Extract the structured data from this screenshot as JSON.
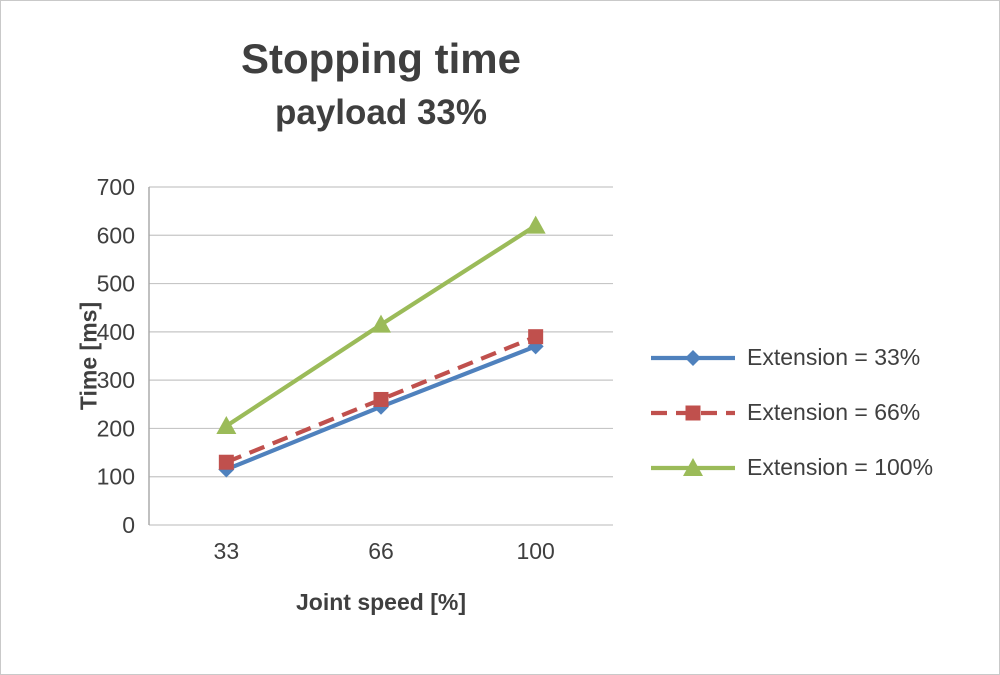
{
  "title": "Stopping time",
  "subtitle": "payload 33%",
  "chart_data": {
    "type": "line",
    "categories": [
      "33",
      "66",
      "100"
    ],
    "x": [
      33,
      66,
      100
    ],
    "series": [
      {
        "name": "Extension = 33%",
        "values": [
          115,
          245,
          370
        ],
        "color": "#4f81bd",
        "marker": "diamond",
        "dash": "solid"
      },
      {
        "name": "Extension = 66%",
        "values": [
          130,
          260,
          390
        ],
        "color": "#c0504d",
        "marker": "square",
        "dash": "dashed"
      },
      {
        "name": "Extension = 100%",
        "values": [
          205,
          415,
          620
        ],
        "color": "#9bbb59",
        "marker": "triangle",
        "dash": "solid"
      }
    ],
    "xlabel": "Joint speed [%]",
    "ylabel": "Time [ms]",
    "ylim": [
      0,
      700
    ],
    "yticks": [
      0,
      100,
      200,
      300,
      400,
      500,
      600,
      700
    ],
    "grid": true,
    "legend_position": "right",
    "grid_color": "#c6c6c6",
    "axis_color": "#a6a6a6",
    "tick_label_color": "#3f3f3f"
  }
}
